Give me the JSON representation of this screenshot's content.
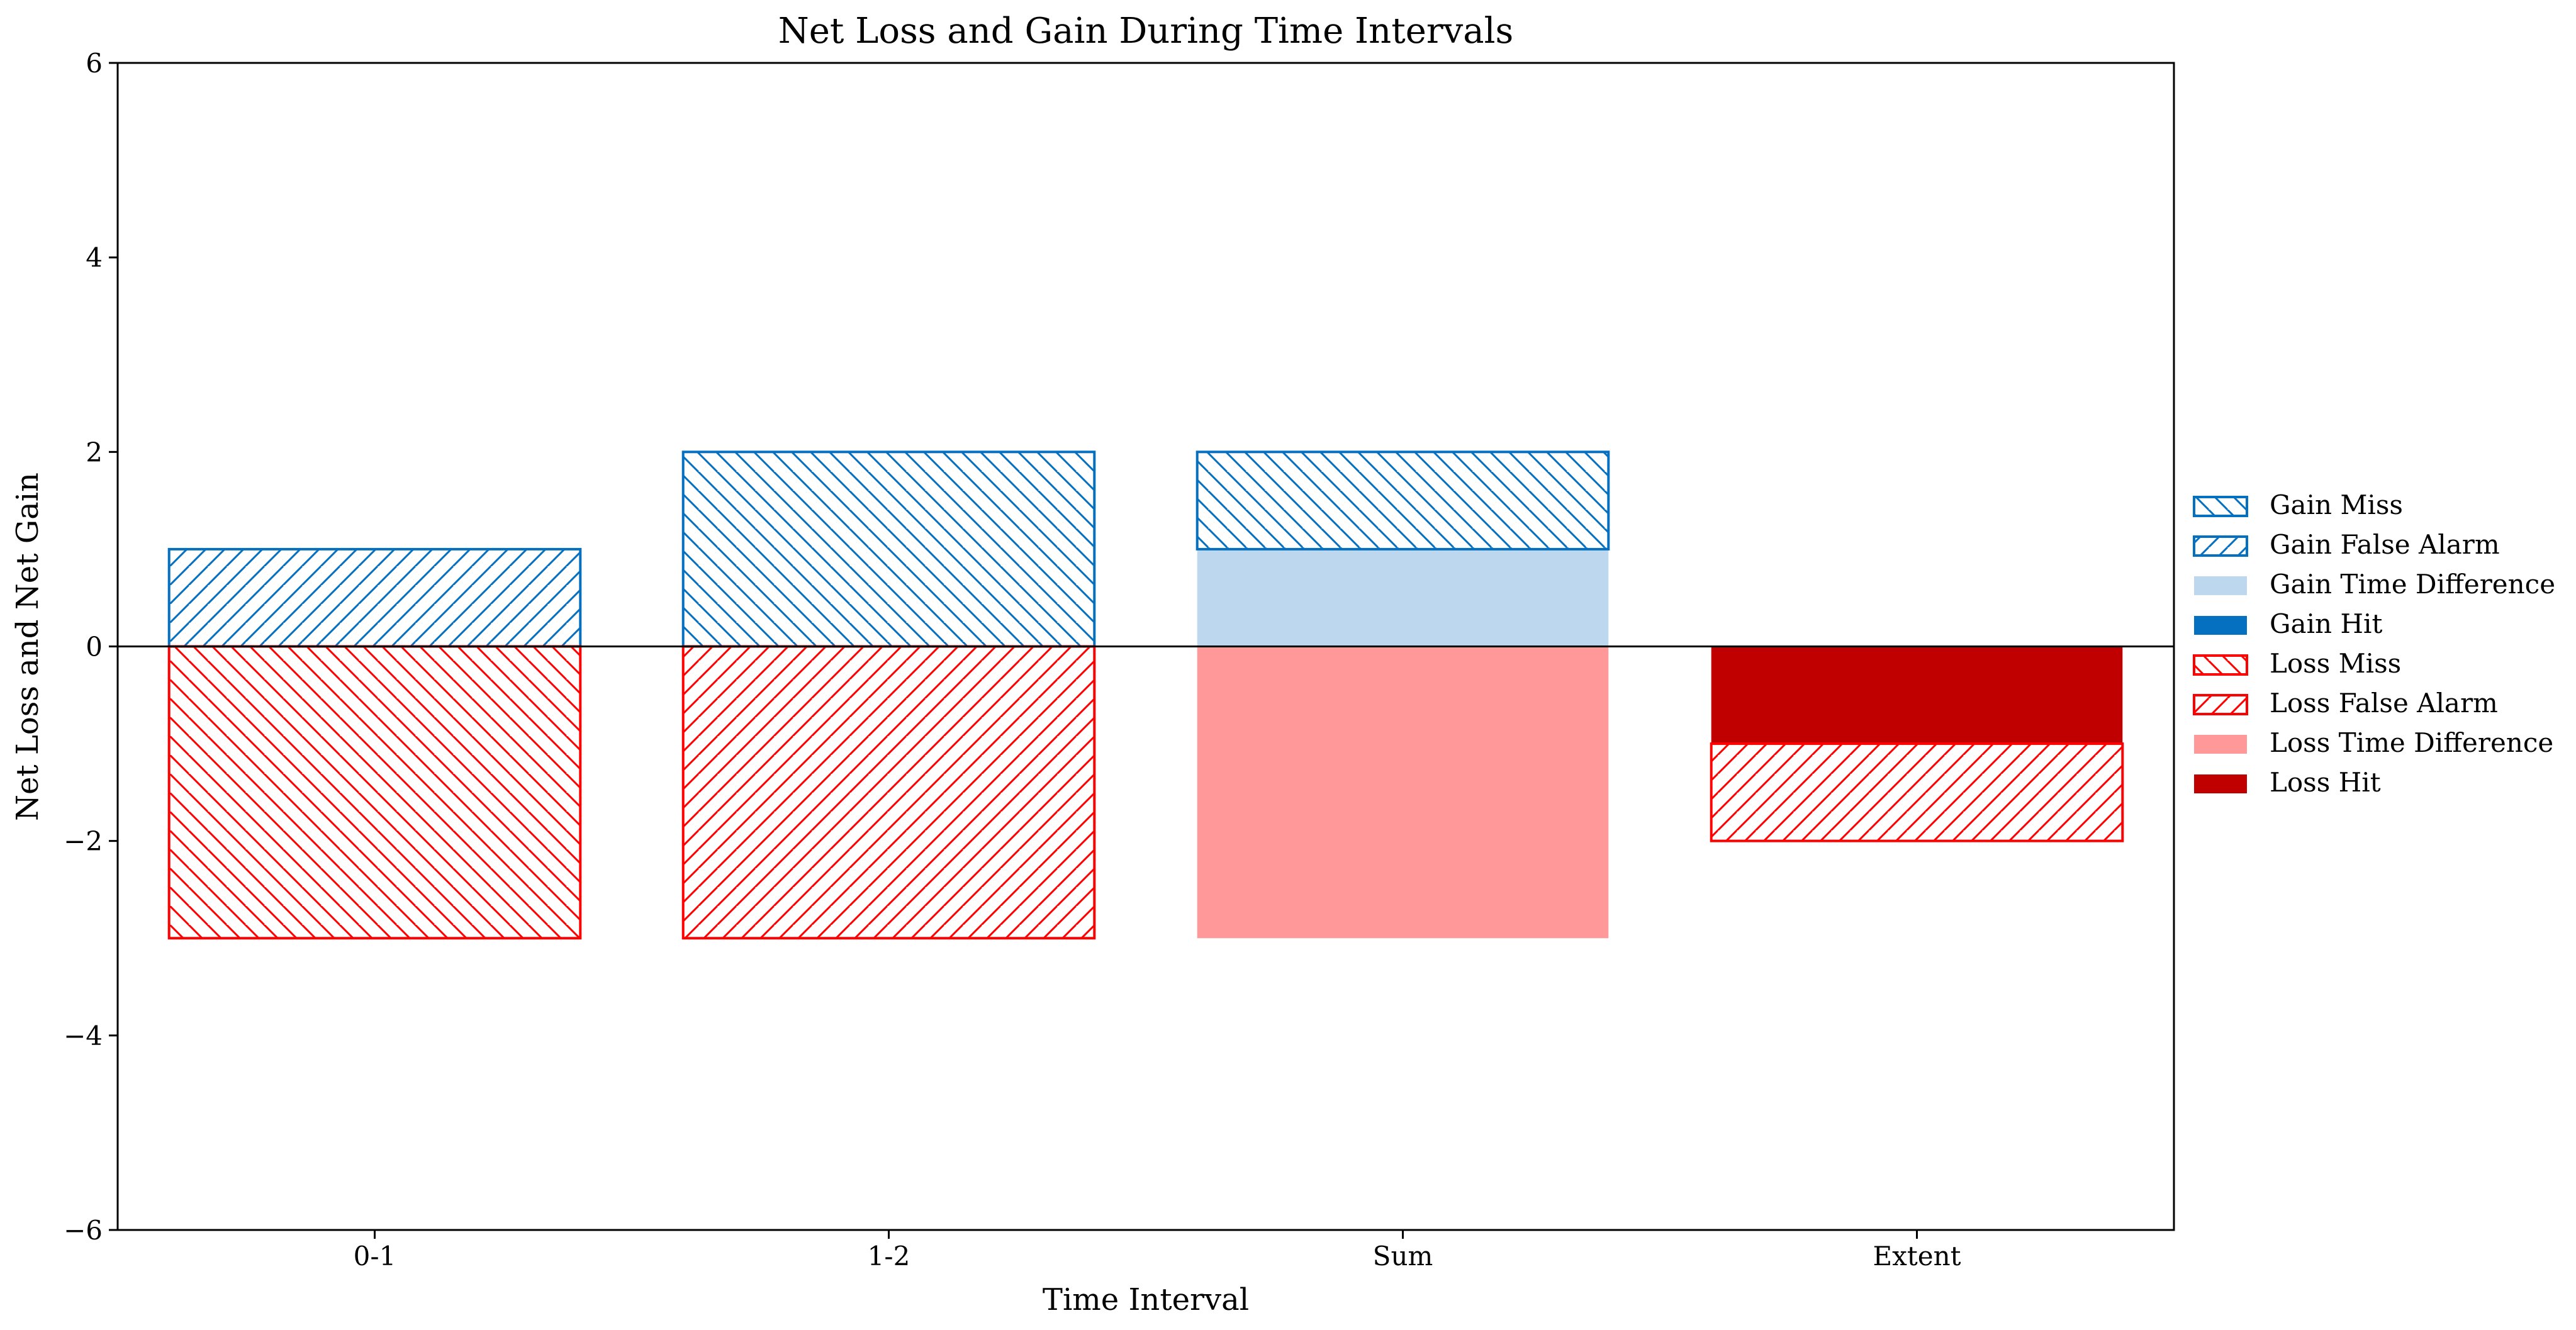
{
  "chart_data": {
    "type": "bar",
    "title": "Net Loss and Gain During Time Intervals",
    "xlabel": "Time Interval",
    "ylabel": "Net Loss and Net Gain",
    "categories": [
      "0-1",
      "1-2",
      "Sum",
      "Extent"
    ],
    "ylim": [
      -6,
      6
    ],
    "yticks": [
      -6,
      -4,
      -2,
      0,
      2,
      4,
      6
    ],
    "ytick_labels": [
      "−6",
      "−4",
      "−2",
      "0",
      "2",
      "4",
      "6"
    ],
    "stacked": true,
    "legend_position": "center-right outside",
    "series": [
      {
        "name": "Gain Miss",
        "color": "#0570c0",
        "style": "hatch-backslash",
        "values": [
          0,
          2,
          1,
          0
        ]
      },
      {
        "name": "Gain False Alarm",
        "color": "#0570c0",
        "style": "hatch-slash",
        "values": [
          1,
          0,
          0,
          0
        ]
      },
      {
        "name": "Gain Time Difference",
        "color": "#bdd7ee",
        "style": "solid",
        "values": [
          0,
          0,
          1,
          0
        ]
      },
      {
        "name": "Gain Hit",
        "color": "#0570c0",
        "style": "solid",
        "values": [
          0,
          0,
          0,
          0
        ]
      },
      {
        "name": "Loss Miss",
        "color": "#ff0000",
        "style": "hatch-backslash",
        "values": [
          -3,
          0,
          0,
          0
        ]
      },
      {
        "name": "Loss False Alarm",
        "color": "#ff0000",
        "style": "hatch-slash",
        "values": [
          0,
          -3,
          0,
          -1
        ]
      },
      {
        "name": "Loss Time Difference",
        "color": "#ff9999",
        "style": "solid",
        "values": [
          0,
          0,
          -3,
          0
        ]
      },
      {
        "name": "Loss Hit",
        "color": "#c00000",
        "style": "solid",
        "values": [
          0,
          0,
          0,
          -1
        ]
      }
    ],
    "stack_order": {
      "positive": [
        "Gain Time Difference",
        "Gain Hit",
        "Gain False Alarm",
        "Gain Miss"
      ],
      "negative": [
        "Loss Hit",
        "Loss Time Difference",
        "Loss False Alarm",
        "Loss Miss"
      ]
    }
  }
}
